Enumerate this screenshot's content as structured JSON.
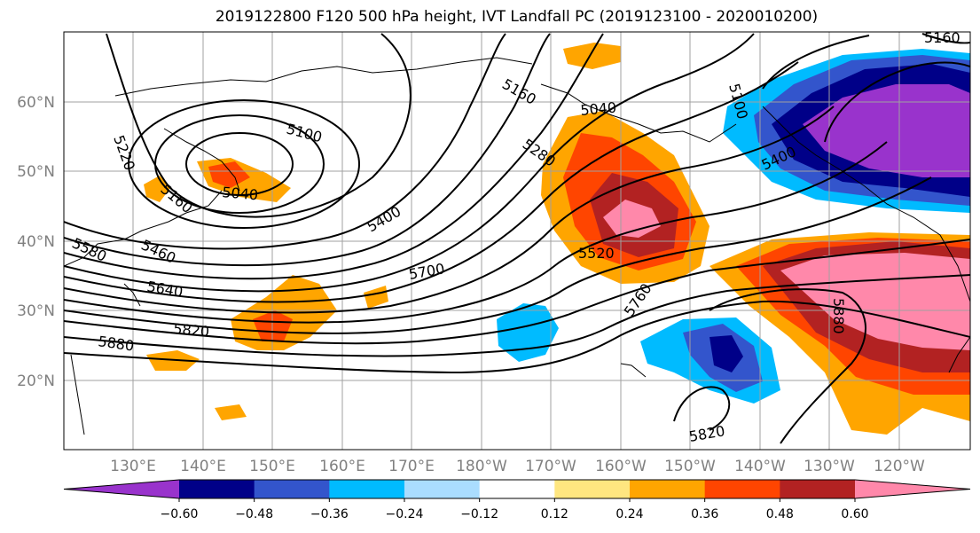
{
  "title": "2019122800 F120 500 hPa height, IVT Landfall PC (2019123100 - 2020010200)",
  "latitude_labels": [
    "60°N",
    "50°N",
    "40°N",
    "30°N",
    "20°N"
  ],
  "longitude_labels": [
    "130°E",
    "140°E",
    "150°E",
    "160°E",
    "170°E",
    "180°W",
    "170°W",
    "160°W",
    "150°W",
    "140°W",
    "130°W",
    "120°W"
  ],
  "contour_labels": [
    "5220",
    "5100",
    "5160",
    "5040",
    "5580",
    "5460",
    "5640",
    "5880",
    "5820",
    "5400",
    "5700",
    "5160",
    "5040",
    "5280",
    "5100",
    "5400",
    "5520",
    "5760",
    "5880",
    "5820",
    "5160"
  ],
  "colorbar": {
    "tick_labels": [
      "-0.60",
      "-0.48",
      "-0.36",
      "-0.24",
      "-0.12",
      "0.12",
      "0.24",
      "0.36",
      "0.48",
      "0.60"
    ],
    "colors": [
      "#9933cc",
      "#000088",
      "#3355cc",
      "#00bbff",
      "#aaddff",
      "#ffffff",
      "#ffe680",
      "#ffa500",
      "#ff4500",
      "#b22222",
      "#ff88aa"
    ]
  }
}
